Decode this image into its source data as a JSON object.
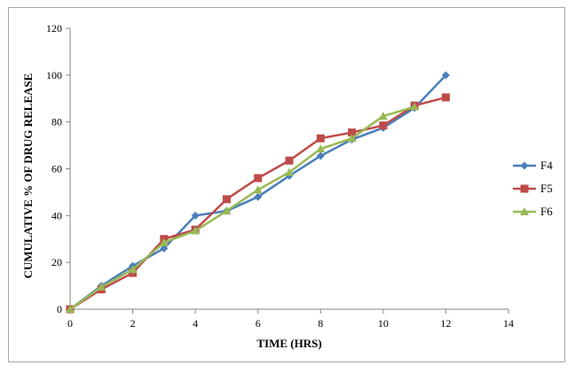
{
  "chart_data": {
    "type": "line",
    "title": "",
    "xlabel": "TIME (HRS)",
    "ylabel": "CUMULATIVE % OF DRUG RELEASE",
    "xlim": [
      0,
      14
    ],
    "ylim": [
      0,
      120
    ],
    "xticks": [
      0,
      2,
      4,
      6,
      8,
      10,
      12,
      14
    ],
    "yticks": [
      0,
      20,
      40,
      60,
      80,
      100,
      120
    ],
    "grid": false,
    "legend_position": "right",
    "series": [
      {
        "name": "F4",
        "color": "#4a7ebb",
        "marker": "diamond",
        "x": [
          0,
          1,
          2,
          3,
          4,
          5,
          6,
          7,
          8,
          9,
          10,
          11,
          12
        ],
        "y": [
          0,
          10,
          18.5,
          26,
          40,
          42,
          48,
          57,
          65.5,
          72.5,
          77.5,
          86,
          100
        ]
      },
      {
        "name": "F5",
        "color": "#be4b48",
        "marker": "square",
        "x": [
          0,
          1,
          2,
          3,
          4,
          5,
          6,
          7,
          8,
          9,
          10,
          11,
          12
        ],
        "y": [
          0,
          8.5,
          15.5,
          30,
          34,
          47,
          56,
          63.5,
          73,
          75.5,
          78.5,
          87,
          90.5
        ]
      },
      {
        "name": "F6",
        "color": "#98b954",
        "marker": "triangle",
        "x": [
          0,
          1,
          2,
          3,
          4,
          5,
          6,
          7,
          8,
          9,
          10,
          11
        ],
        "y": [
          0,
          9.5,
          17,
          28.5,
          33.5,
          42,
          51,
          58.5,
          68.5,
          73,
          82.5,
          86.5
        ]
      }
    ]
  }
}
